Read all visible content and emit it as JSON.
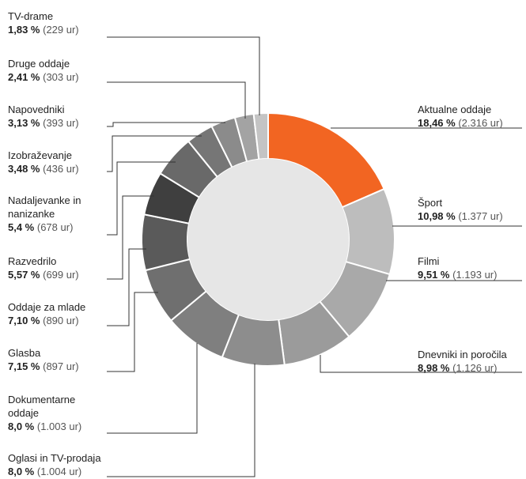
{
  "chart_data": {
    "type": "donut",
    "categories": [
      "Aktualne oddaje",
      "Šport",
      "Filmi",
      "Dnevniki in poročila",
      "Oglasi in TV-prodaja",
      "Dokumentarne oddaje",
      "Glasba",
      "Oddaje za mlade",
      "Razvedrilo",
      "Nadaljevanke in nanizanke",
      "Izobraževanje",
      "Napovedniki",
      "Druge oddaje",
      "TV-drame"
    ],
    "values": [
      18.46,
      10.98,
      9.51,
      8.98,
      8.0,
      8.0,
      7.15,
      7.1,
      5.57,
      5.4,
      3.48,
      3.13,
      2.41,
      1.83
    ],
    "value_labels": [
      "18,46 %",
      "10,98 %",
      "9,51 %",
      "8,98 %",
      "8,0 %",
      "8,0 %",
      "7,15 %",
      "7,10 %",
      "5,57 %",
      "5,4 %",
      "3,48 %",
      "3,13 %",
      "2,41 %",
      "1,83 %"
    ],
    "hour_labels": [
      "(2.316 ur)",
      "(1.377 ur)",
      "(1.193 ur)",
      "(1.126 ur)",
      "(1.004 ur)",
      "(1.003 ur)",
      "(897 ur)",
      "(890 ur)",
      "(699 ur)",
      "(678 ur)",
      "(436 ur)",
      "(393 ur)",
      "(303 ur)",
      "(229 ur)"
    ],
    "colors": [
      "#f26522",
      "#bdbdbd",
      "#a9a9a9",
      "#9b9b9b",
      "#8d8d8d",
      "#7f7f7f",
      "#6f6f6f",
      "#5a5a5a",
      "#3f3f3f",
      "#696969",
      "#767676",
      "#8b8b8b",
      "#a3a3a3",
      "#c4c4c4"
    ]
  }
}
